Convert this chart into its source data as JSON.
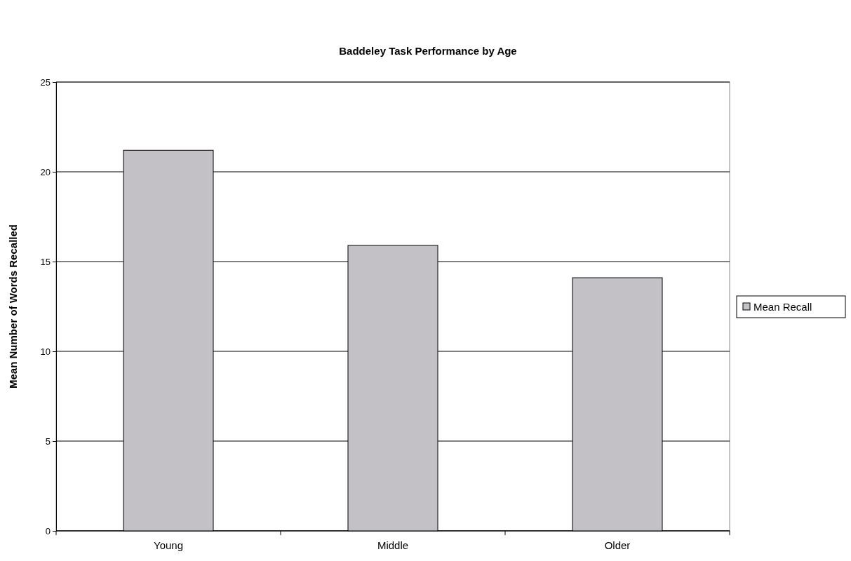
{
  "chart_data": {
    "type": "bar",
    "title": "Baddeley Task Performance by Age",
    "ylabel": "Mean Number of Words Recalled",
    "categories": [
      "Young",
      "Middle",
      "Older"
    ],
    "series": [
      {
        "name": "Mean Recall",
        "color": "#c3c1c6",
        "values": [
          21.2,
          15.9,
          14.1
        ]
      }
    ],
    "ylim": [
      0,
      25
    ],
    "yticks": [
      0,
      5,
      10,
      15,
      20,
      25
    ],
    "grid": "y",
    "legend": "right"
  }
}
